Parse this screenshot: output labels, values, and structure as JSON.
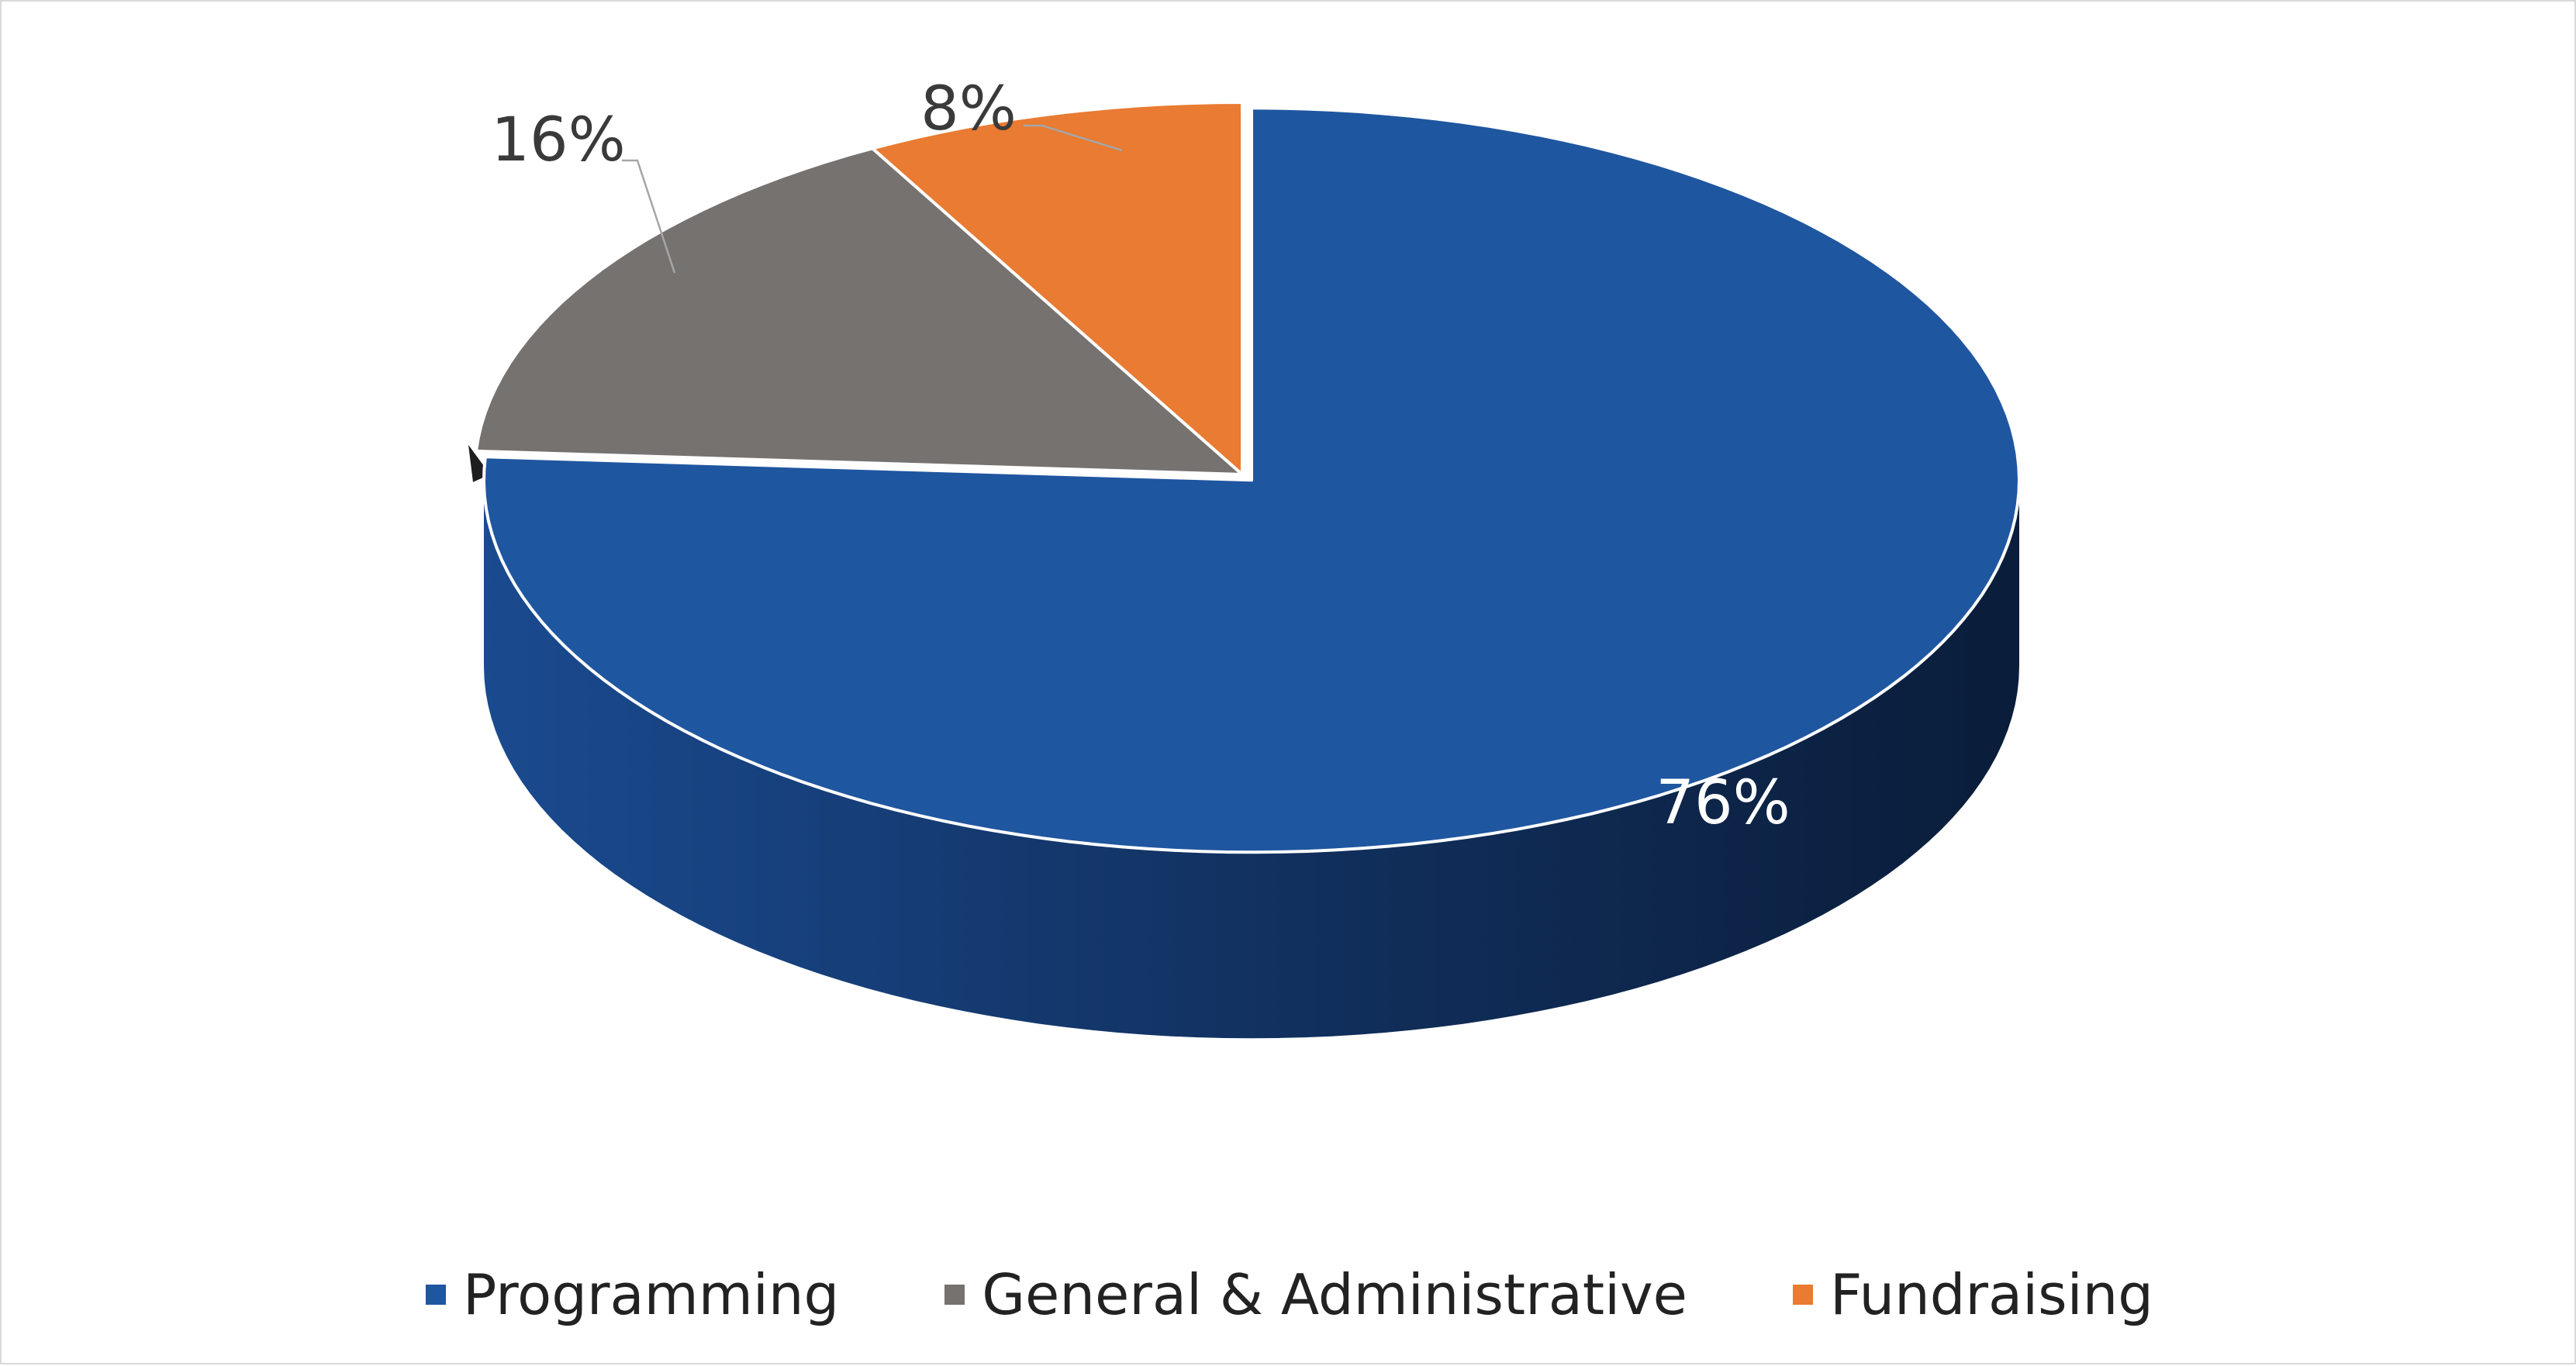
{
  "chart_data": {
    "type": "pie",
    "style": "3d",
    "title": "",
    "categories": [
      "Programming",
      "General & Administrative",
      "Fundraising"
    ],
    "values": [
      76,
      16,
      8
    ],
    "unit": "%",
    "data_labels": [
      "76%",
      "16%",
      "8%"
    ],
    "colors": [
      "#1f56a0",
      "#767270",
      "#e97b32"
    ],
    "exploded": "Programming",
    "legend_position": "bottom"
  },
  "legend": {
    "items": [
      {
        "label": "Programming",
        "color": "#1f56a0"
      },
      {
        "label": "General & Administrative",
        "color": "#767270"
      },
      {
        "label": "Fundraising",
        "color": "#e97b32"
      }
    ]
  }
}
